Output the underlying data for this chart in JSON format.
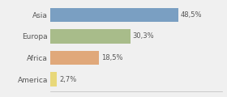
{
  "categories": [
    "Asia",
    "Europa",
    "Africa",
    "America"
  ],
  "values": [
    48.5,
    30.3,
    18.5,
    2.7
  ],
  "labels": [
    "48,5%",
    "30,3%",
    "18,5%",
    "2,7%"
  ],
  "bar_colors": [
    "#7a9fc2",
    "#a8bc8a",
    "#e0a87a",
    "#e8d87a"
  ],
  "background_color": "#f0f0f0",
  "xlim": [
    0,
    65
  ],
  "bar_height": 0.65
}
